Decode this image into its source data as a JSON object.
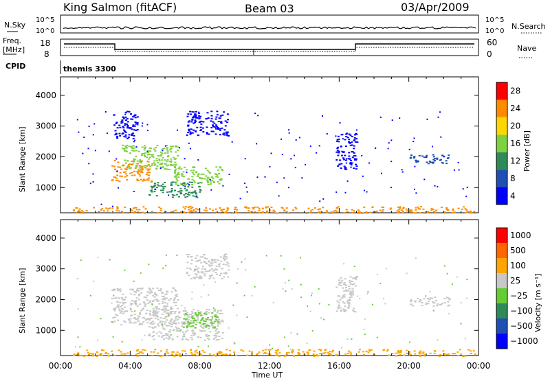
{
  "header": {
    "station": "King Salmon (fitACF)",
    "beam": "Beam 03",
    "date": "03/Apr/2009"
  },
  "summary": {
    "nsky_label": "N.Sky",
    "nsky_ticks": [
      "10^5",
      "10^0"
    ],
    "nsearch_label": "N.Search",
    "nsearch_ticks": [
      "10^5",
      "10^0"
    ],
    "freq_label_1": "Freq.",
    "freq_label_2": "[MHz]",
    "freq_ticks": [
      "18",
      "8"
    ],
    "nave_label": "Nave",
    "nave_ticks": [
      "60",
      "0"
    ],
    "cpid_label": "CPID",
    "cpid_value": "themis 3300"
  },
  "axes": {
    "ylabel": "Slant Range [km]",
    "xlabel": "Time UT",
    "yticks": [
      "1000",
      "2000",
      "3000",
      "4000"
    ],
    "xticks": [
      "00:00",
      "04:00",
      "08:00",
      "12:00",
      "16:00",
      "20:00",
      "00:00"
    ]
  },
  "colorbars": {
    "power": {
      "label": "Power [dB]",
      "ticks": [
        "4",
        "8",
        "12",
        "16",
        "20",
        "24",
        "28"
      ],
      "colors": [
        "#0000ff",
        "#1f4fb4",
        "#2e8b57",
        "#7fd142",
        "#ffd700",
        "#ff8c00",
        "#ff0000"
      ]
    },
    "velocity": {
      "label": "Velocity [m s⁻¹]",
      "ticks": [
        "1000",
        "500",
        "100",
        "25",
        "−25",
        "−100",
        "−500",
        "−1000"
      ],
      "colors": [
        "#0000ff",
        "#1f4fb4",
        "#2e8b57",
        "#66cc33",
        "#c8c8c8",
        "#ffa500",
        "#ff6600",
        "#ff0000"
      ]
    }
  },
  "chart_data": [
    {
      "type": "heatmap",
      "name": "power",
      "xrange_hours": [
        0,
        24
      ],
      "yrange_km": [
        180,
        4600
      ],
      "regions": [
        {
          "t": [
            2.9,
            5.2
          ],
          "r": [
            1200,
            1900
          ],
          "c": "#ff8c00"
        },
        {
          "t": [
            3.5,
            6.7
          ],
          "r": [
            1600,
            2400
          ],
          "c": "#7fd142"
        },
        {
          "t": [
            5.0,
            8.0
          ],
          "r": [
            700,
            1200
          ],
          "c": "#2e8b57"
        },
        {
          "t": [
            6.5,
            9.3
          ],
          "r": [
            1100,
            1700
          ],
          "c": "#7fd142"
        },
        {
          "t": [
            15.8,
            17.0
          ],
          "r": [
            1600,
            2800
          ],
          "c": "#0000ff"
        },
        {
          "t": [
            3.0,
            4.4
          ],
          "r": [
            2600,
            3500
          ],
          "c": "#0000ff"
        },
        {
          "t": [
            7.2,
            9.6
          ],
          "r": [
            2700,
            3500
          ],
          "c": "#0000ff"
        },
        {
          "t": [
            0.7,
            23.8
          ],
          "r": [
            180,
            400
          ],
          "c": "#ff8c00"
        },
        {
          "t": [
            20.0,
            22.3
          ],
          "r": [
            1800,
            2100
          ],
          "c": "#1f4fb4"
        }
      ]
    },
    {
      "type": "heatmap",
      "name": "velocity",
      "xrange_hours": [
        0,
        24
      ],
      "yrange_km": [
        180,
        4600
      ],
      "regions": [
        {
          "t": [
            2.9,
            6.7
          ],
          "r": [
            1200,
            2400
          ],
          "c": "#c8c8c8"
        },
        {
          "t": [
            5.0,
            9.3
          ],
          "r": [
            700,
            1700
          ],
          "c": "#c8c8c8"
        },
        {
          "t": [
            7.0,
            9.0
          ],
          "r": [
            1100,
            1600
          ],
          "c": "#66cc33"
        },
        {
          "t": [
            15.8,
            17.0
          ],
          "r": [
            1600,
            2800
          ],
          "c": "#c8c8c8"
        },
        {
          "t": [
            7.2,
            9.6
          ],
          "r": [
            2700,
            3500
          ],
          "c": "#c8c8c8"
        },
        {
          "t": [
            0.7,
            23.8
          ],
          "r": [
            180,
            400
          ],
          "c": "#ffa500"
        },
        {
          "t": [
            20.0,
            22.3
          ],
          "r": [
            1800,
            2100
          ],
          "c": "#c8c8c8"
        }
      ]
    }
  ]
}
